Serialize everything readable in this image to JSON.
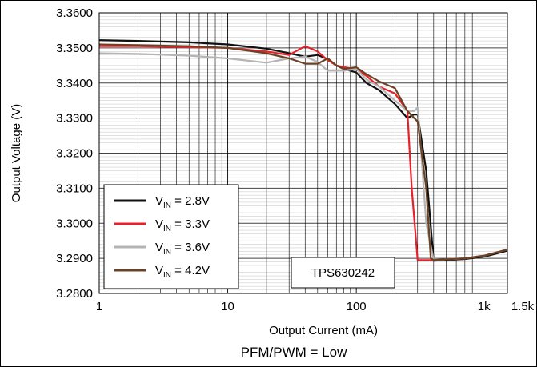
{
  "chart_data": {
    "type": "line",
    "xscale": "log",
    "xlim": [
      1,
      1500
    ],
    "ylim": [
      3.28,
      3.36
    ],
    "yticks": [
      3.28,
      3.29,
      3.3,
      3.31,
      3.32,
      3.33,
      3.34,
      3.35,
      3.36
    ],
    "ytick_labels": [
      "3.2800",
      "3.2900",
      "3.3000",
      "3.3100",
      "3.3200",
      "3.3300",
      "3.3400",
      "3.3500",
      "3.3600"
    ],
    "xticks": [
      1,
      10,
      100,
      1000,
      1500
    ],
    "xtick_labels": [
      "1",
      "10",
      "100",
      "1k",
      "1.5k"
    ],
    "xlabel": "Output Current (mA)",
    "ylabel": "Output Voltage (V)",
    "caption": "PFM/PWM = Low",
    "annotation": "TPS630242",
    "grid": true,
    "legend_position": "bottom-left",
    "series": [
      {
        "name_main": "V",
        "name_sub": "IN",
        "name_rest": " = 2.8V",
        "color": "#111111",
        "x": [
          1,
          2,
          5,
          10,
          20,
          30,
          40,
          50,
          60,
          70,
          80,
          100,
          120,
          150,
          200,
          250,
          280,
          300,
          350,
          400,
          500,
          700,
          1000,
          1500
        ],
        "y": [
          3.3522,
          3.352,
          3.3516,
          3.351,
          3.3498,
          3.3485,
          3.3475,
          3.348,
          3.3468,
          3.345,
          3.344,
          3.343,
          3.34,
          3.338,
          3.334,
          3.33,
          3.331,
          3.331,
          3.315,
          3.2893,
          3.2895,
          3.2898,
          3.2905,
          3.2922
        ]
      },
      {
        "name_main": "V",
        "name_sub": "IN",
        "name_rest": " = 3.3V",
        "color": "#e8202a",
        "x": [
          1,
          2,
          5,
          10,
          20,
          30,
          40,
          50,
          60,
          70,
          80,
          100,
          120,
          150,
          200,
          250,
          270,
          300,
          350,
          400,
          500,
          700,
          1000,
          1500
        ],
        "y": [
          3.3505,
          3.3505,
          3.3502,
          3.35,
          3.349,
          3.348,
          3.3505,
          3.349,
          3.3465,
          3.345,
          3.3445,
          3.344,
          3.342,
          3.339,
          3.337,
          3.332,
          3.31,
          3.2895,
          3.2895,
          3.2895,
          3.2897,
          3.29,
          3.2908,
          3.2925
        ]
      },
      {
        "name_main": "V",
        "name_sub": "IN",
        "name_rest": " = 3.6V",
        "color": "#b4b4b4",
        "x": [
          1,
          2,
          5,
          10,
          20,
          30,
          40,
          50,
          60,
          70,
          80,
          100,
          120,
          150,
          200,
          250,
          280,
          300,
          320,
          350,
          400,
          500,
          700,
          1000,
          1500
        ],
        "y": [
          3.3485,
          3.3483,
          3.3478,
          3.347,
          3.3458,
          3.347,
          3.3475,
          3.346,
          3.3435,
          3.3435,
          3.3435,
          3.344,
          3.341,
          3.339,
          3.335,
          3.332,
          3.332,
          3.333,
          3.32,
          3.3,
          3.2895,
          3.2897,
          3.29,
          3.2908,
          3.2925
        ]
      },
      {
        "name_main": "V",
        "name_sub": "IN",
        "name_rest": " = 4.2V",
        "color": "#6b4226",
        "x": [
          1,
          2,
          5,
          10,
          20,
          30,
          40,
          50,
          60,
          70,
          80,
          100,
          120,
          150,
          200,
          250,
          300,
          350,
          380,
          400,
          500,
          700,
          1000,
          1500
        ],
        "y": [
          3.351,
          3.3508,
          3.3505,
          3.35,
          3.3485,
          3.347,
          3.3455,
          3.3455,
          3.347,
          3.345,
          3.344,
          3.3445,
          3.3425,
          3.3405,
          3.3385,
          3.332,
          3.329,
          3.31,
          3.29,
          3.2895,
          3.2897,
          3.29,
          3.2908,
          3.2925
        ]
      }
    ]
  }
}
